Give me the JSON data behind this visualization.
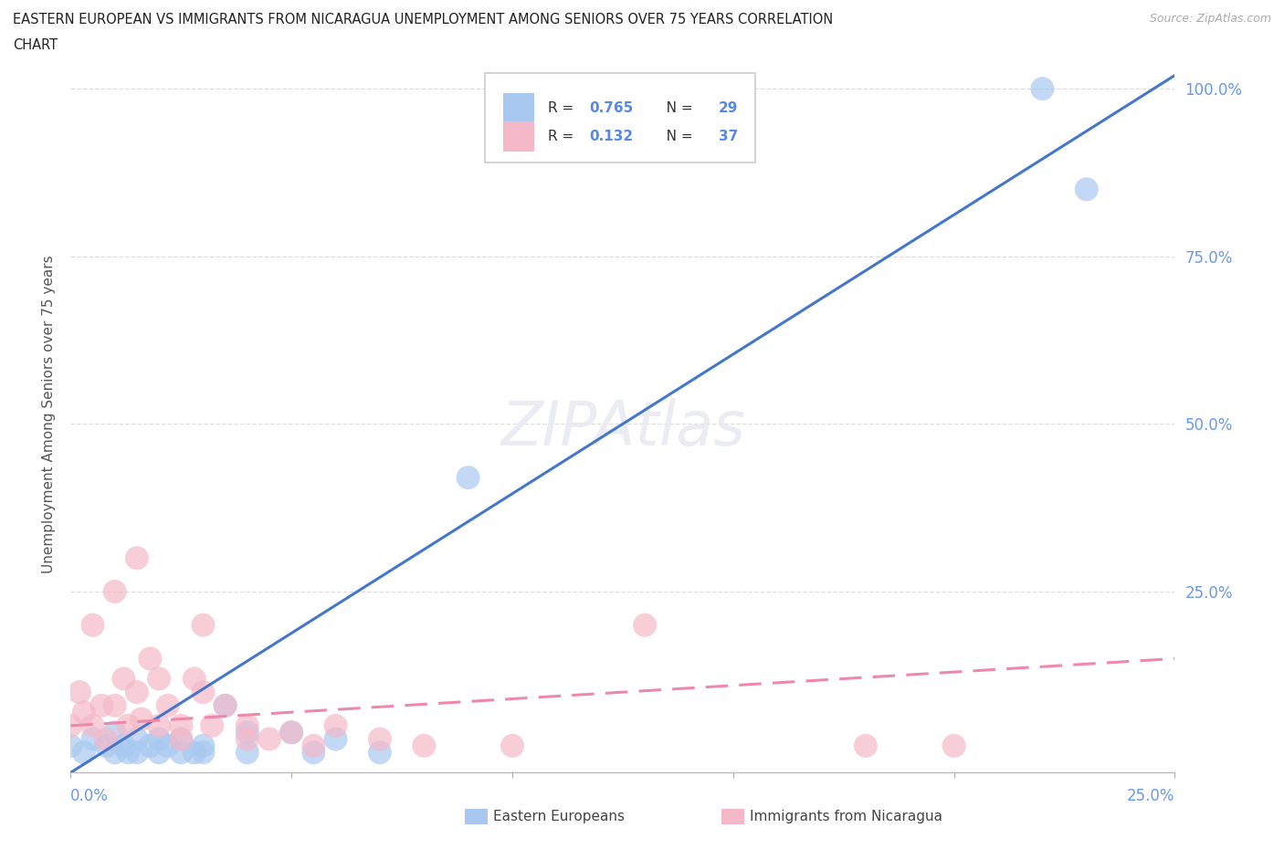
{
  "title_line1": "EASTERN EUROPEAN VS IMMIGRANTS FROM NICARAGUA UNEMPLOYMENT AMONG SENIORS OVER 75 YEARS CORRELATION",
  "title_line2": "CHART",
  "source": "Source: ZipAtlas.com",
  "ylabel": "Unemployment Among Seniors over 75 years",
  "ytick_labels": [
    "100.0%",
    "75.0%",
    "50.0%",
    "25.0%"
  ],
  "ytick_values": [
    1.0,
    0.75,
    0.5,
    0.25
  ],
  "xlim": [
    0.0,
    0.25
  ],
  "ylim": [
    -0.02,
    1.05
  ],
  "blue_R": 0.765,
  "blue_N": 29,
  "pink_R": 0.132,
  "pink_N": 37,
  "blue_color": "#a8c8f0",
  "pink_color": "#f5b8c8",
  "blue_line_color": "#4477cc",
  "pink_line_color": "#ee88aa",
  "watermark": "ZIPAtlas",
  "blue_scatter_x": [
    0.0,
    0.003,
    0.005,
    0.008,
    0.01,
    0.01,
    0.012,
    0.013,
    0.015,
    0.015,
    0.018,
    0.02,
    0.02,
    0.022,
    0.025,
    0.025,
    0.028,
    0.03,
    0.03,
    0.035,
    0.04,
    0.04,
    0.05,
    0.055,
    0.06,
    0.07,
    0.09,
    0.22,
    0.23
  ],
  "blue_scatter_y": [
    0.02,
    0.01,
    0.03,
    0.02,
    0.04,
    0.01,
    0.02,
    0.01,
    0.03,
    0.01,
    0.02,
    0.03,
    0.01,
    0.02,
    0.01,
    0.03,
    0.01,
    0.02,
    0.01,
    0.08,
    0.04,
    0.01,
    0.04,
    0.01,
    0.03,
    0.01,
    0.42,
    1.0,
    0.85
  ],
  "pink_scatter_x": [
    0.0,
    0.002,
    0.003,
    0.005,
    0.005,
    0.007,
    0.008,
    0.01,
    0.01,
    0.012,
    0.013,
    0.015,
    0.015,
    0.016,
    0.018,
    0.02,
    0.02,
    0.022,
    0.025,
    0.025,
    0.028,
    0.03,
    0.03,
    0.032,
    0.035,
    0.04,
    0.04,
    0.045,
    0.05,
    0.055,
    0.06,
    0.07,
    0.08,
    0.1,
    0.13,
    0.18,
    0.2
  ],
  "pink_scatter_y": [
    0.05,
    0.1,
    0.07,
    0.2,
    0.05,
    0.08,
    0.03,
    0.25,
    0.08,
    0.12,
    0.05,
    0.3,
    0.1,
    0.06,
    0.15,
    0.12,
    0.05,
    0.08,
    0.05,
    0.03,
    0.12,
    0.2,
    0.1,
    0.05,
    0.08,
    0.03,
    0.05,
    0.03,
    0.04,
    0.02,
    0.05,
    0.03,
    0.02,
    0.02,
    0.2,
    0.02,
    0.02
  ],
  "grid_color": "#dddddd",
  "background_color": "#ffffff"
}
